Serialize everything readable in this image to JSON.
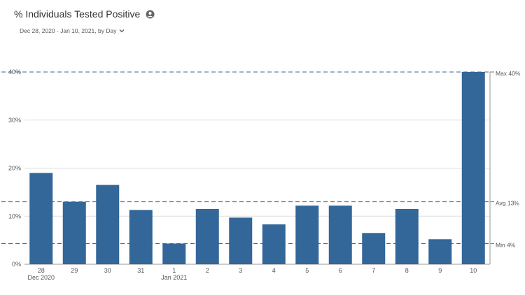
{
  "header": {
    "title": "% Individuals Tested Positive",
    "title_icon": "user-circle-icon",
    "date_range": "Dec 28, 2020 - Jan 10, 2021, by Day",
    "dropdown_icon": "chevron-down-icon"
  },
  "chart_data": {
    "type": "bar",
    "categories": [
      "28",
      "29",
      "30",
      "31",
      "1",
      "2",
      "3",
      "4",
      "5",
      "6",
      "7",
      "8",
      "9",
      "10"
    ],
    "month_labels": [
      {
        "category_index": 0,
        "label": "Dec 2020"
      },
      {
        "category_index": 4,
        "label": "Jan 2021"
      }
    ],
    "values": [
      19,
      13,
      16.5,
      11.3,
      4.3,
      11.5,
      9.7,
      8.3,
      12.2,
      12.2,
      6.5,
      11.5,
      5.2,
      40
    ],
    "ylim": [
      0,
      40
    ],
    "yticks": [
      0,
      10,
      20,
      30,
      40
    ],
    "ytick_labels": [
      "0%",
      "10%",
      "20%",
      "30%",
      "40%"
    ],
    "grid": true,
    "bar_color": "#336699",
    "reference_lines": [
      {
        "label": "Max 40%",
        "value": 40
      },
      {
        "label": "Avg 13%",
        "value": 13
      },
      {
        "label": "Min 4%",
        "value": 4.3
      }
    ]
  }
}
